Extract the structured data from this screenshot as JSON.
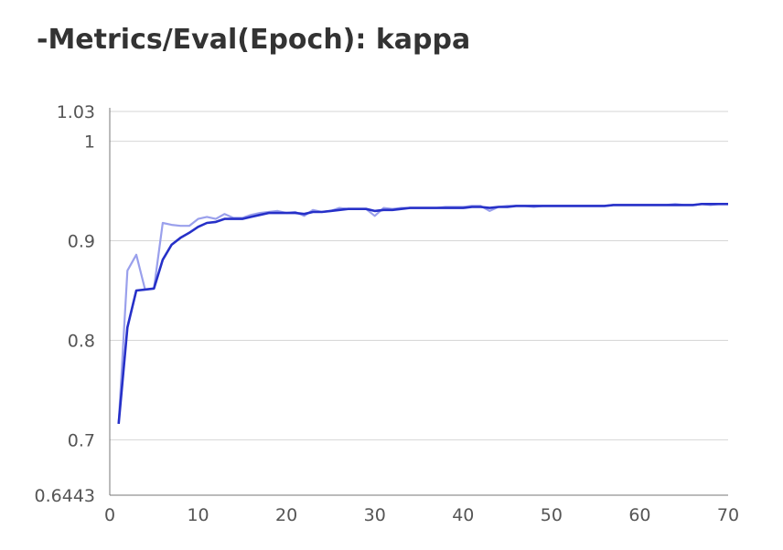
{
  "chart_data": {
    "type": "line",
    "title": "-Metrics/Eval(Epoch): kappa",
    "xlabel": "",
    "ylabel": "",
    "xlim": [
      0,
      70
    ],
    "ylim": [
      0.6443,
      1.03
    ],
    "x_ticks": [
      "10",
      "20",
      "30",
      "40",
      "50",
      "60",
      "70"
    ],
    "y_ticks": [
      {
        "value": 1.03,
        "label": "1.03"
      },
      {
        "value": 1.0,
        "label": "1"
      },
      {
        "value": 0.9,
        "label": "0.9"
      },
      {
        "value": 0.8,
        "label": "0.8"
      },
      {
        "value": 0.7,
        "label": "0.7"
      },
      {
        "value": 0.6443,
        "label": "0.6443"
      }
    ],
    "grid": true,
    "series": [
      {
        "color": "#9aa0ec",
        "x": [
          1,
          2,
          3,
          4,
          5,
          6,
          7,
          8,
          9,
          10,
          11,
          12,
          13,
          14,
          15,
          16,
          17,
          18,
          19,
          20,
          21,
          22,
          23,
          24,
          25,
          26,
          27,
          28,
          29,
          30,
          31,
          32,
          33,
          34,
          35,
          36,
          37,
          38,
          39,
          40,
          41,
          42,
          43,
          44,
          45,
          46,
          47,
          48,
          49,
          50,
          51,
          52,
          53,
          54,
          55,
          56,
          57,
          58,
          59,
          60,
          61,
          62,
          63,
          64,
          65,
          66,
          67,
          68,
          69,
          70
        ],
        "values": [
          0.716,
          0.87,
          0.886,
          0.851,
          0.852,
          0.918,
          0.916,
          0.915,
          0.915,
          0.922,
          0.924,
          0.922,
          0.927,
          0.923,
          0.923,
          0.926,
          0.928,
          0.929,
          0.93,
          0.928,
          0.929,
          0.925,
          0.931,
          0.929,
          0.93,
          0.933,
          0.932,
          0.932,
          0.932,
          0.925,
          0.933,
          0.932,
          0.933,
          0.933,
          0.933,
          0.933,
          0.933,
          0.934,
          0.934,
          0.934,
          0.935,
          0.935,
          0.93,
          0.934,
          0.935,
          0.935,
          0.935,
          0.934,
          0.935,
          0.935,
          0.935,
          0.935,
          0.935,
          0.935,
          0.935,
          0.935,
          0.936,
          0.936,
          0.936,
          0.936,
          0.936,
          0.936,
          0.936,
          0.937,
          0.936,
          0.936,
          0.937,
          0.936,
          0.937,
          0.937
        ]
      },
      {
        "color": "#2630c8",
        "x": [
          1,
          2,
          3,
          4,
          5,
          6,
          7,
          8,
          9,
          10,
          11,
          12,
          13,
          14,
          15,
          16,
          17,
          18,
          19,
          20,
          21,
          22,
          23,
          24,
          25,
          26,
          27,
          28,
          29,
          30,
          31,
          32,
          33,
          34,
          35,
          36,
          37,
          38,
          39,
          40,
          41,
          42,
          43,
          44,
          45,
          46,
          47,
          48,
          49,
          50,
          51,
          52,
          53,
          54,
          55,
          56,
          57,
          58,
          59,
          60,
          61,
          62,
          63,
          64,
          65,
          66,
          67,
          68,
          69,
          70
        ],
        "values": [
          0.716,
          0.813,
          0.85,
          0.851,
          0.852,
          0.881,
          0.896,
          0.903,
          0.908,
          0.914,
          0.918,
          0.919,
          0.922,
          0.922,
          0.922,
          0.924,
          0.926,
          0.928,
          0.928,
          0.928,
          0.928,
          0.927,
          0.929,
          0.929,
          0.93,
          0.931,
          0.932,
          0.932,
          0.932,
          0.93,
          0.931,
          0.931,
          0.932,
          0.933,
          0.933,
          0.933,
          0.933,
          0.933,
          0.933,
          0.933,
          0.934,
          0.934,
          0.933,
          0.934,
          0.934,
          0.935,
          0.935,
          0.935,
          0.935,
          0.935,
          0.935,
          0.935,
          0.935,
          0.935,
          0.935,
          0.935,
          0.936,
          0.936,
          0.936,
          0.936,
          0.936,
          0.936,
          0.936,
          0.936,
          0.936,
          0.936,
          0.937,
          0.937,
          0.937,
          0.937
        ]
      }
    ]
  }
}
